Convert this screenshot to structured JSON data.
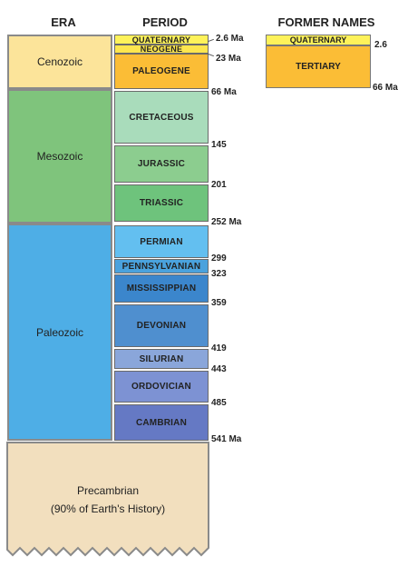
{
  "headers": {
    "era": "ERA",
    "period": "PERIOD",
    "former_names": "FORMER NAMES"
  },
  "eras": {
    "cenozoic": "Cenozoic",
    "mesozoic": "Mesozoic",
    "paleozoic": "Paleozoic",
    "precambrian_line1": "Precambrian",
    "precambrian_line2": "(90% of Earth's History)"
  },
  "periods": {
    "quaternary": "QUATERNARY",
    "neogene": "NEOGENE",
    "paleogene": "PALEOGENE",
    "cretaceous": "CRETACEOUS",
    "jurassic": "JURASSIC",
    "triassic": "TRIASSIC",
    "permian": "PERMIAN",
    "pennsylvanian": "PENNSYLVANIAN",
    "mississippian": "MISSISSIPPIAN",
    "devonian": "DEVONIAN",
    "silurian": "SILURIAN",
    "ordovician": "ORDOVICIAN",
    "cambrian": "CAMBRIAN"
  },
  "boundaries": {
    "b2_6": "2.6 Ma",
    "b23": "23 Ma",
    "b66": "66 Ma",
    "b145": "145",
    "b201": "201",
    "b252": "252 Ma",
    "b299": "299",
    "b323": "323",
    "b359": "359",
    "b419": "419",
    "b443": "443",
    "b485": "485",
    "b541": "541 Ma"
  },
  "former": {
    "quaternary": "QUATERNARY",
    "tertiary": "TERTIARY",
    "b2_6": "2.6",
    "b66": "66 Ma"
  },
  "colors": {
    "cenozoic": "#fce49a",
    "mesozoic": "#7fc47c",
    "paleozoic": "#4eaee6",
    "precambrian": "#f2dfbe",
    "quaternary": "#fef25a",
    "neogene": "#fde64e",
    "paleogene": "#fbbd36",
    "cretaceous": "#a9dcbb",
    "jurassic": "#8ccd8f",
    "triassic": "#6ec37c",
    "permian": "#63bff0",
    "pennsylvanian": "#4aa2dd",
    "mississippian": "#3b86cc",
    "devonian": "#4f8fcf",
    "silurian": "#8aa6da",
    "ordovician": "#7d92d3",
    "cambrian": "#6579c4"
  }
}
